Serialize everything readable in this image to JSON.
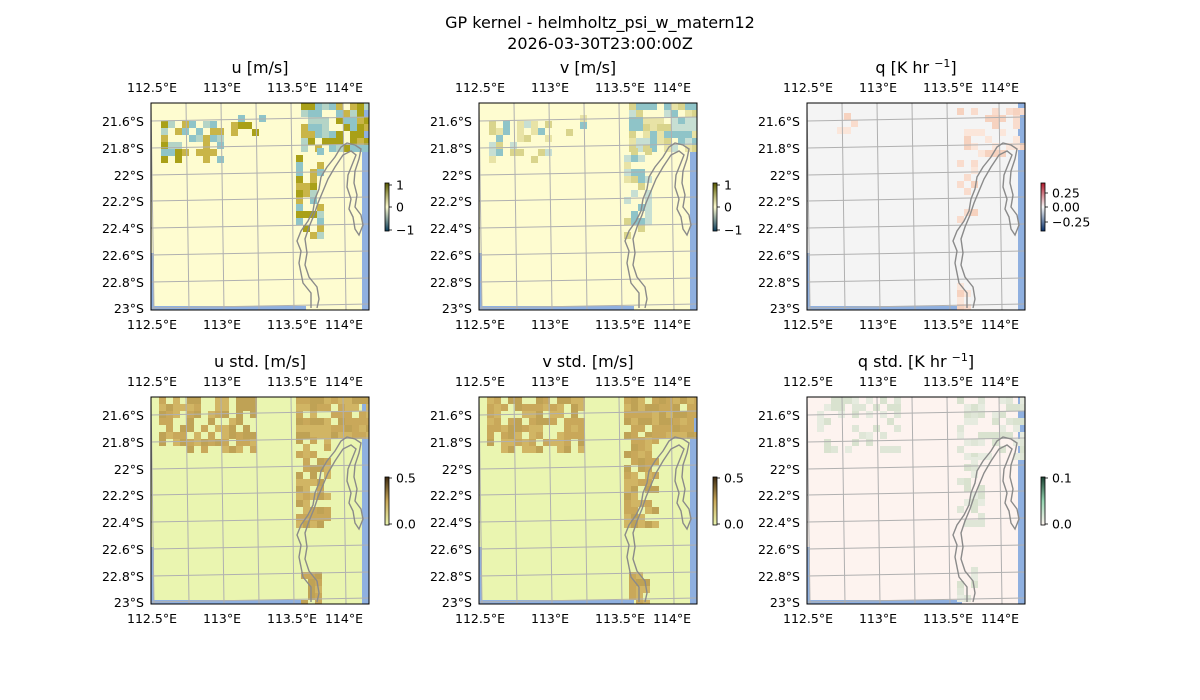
{
  "figure": {
    "title_line1": "GP kernel - helmholtz_psi_w_matern12",
    "title_line2": "2026-03-30T23:00:00Z"
  },
  "colors": {
    "ocean": "#8fb0e0",
    "grid": "#b0b0b0",
    "coast": "#8a8a8a",
    "frame": "#000000"
  },
  "chart_data": [
    {
      "type": "heatmap",
      "id": "u",
      "title": "u [m/s]",
      "xticks": [
        "112.5°E",
        "113°E",
        "113.5°E",
        "114°E"
      ],
      "yticks": [
        "21.6°S",
        "21.8°S",
        "22°S",
        "22.2°S",
        "22.4°S",
        "22.6°S",
        "22.8°S",
        "23°S"
      ],
      "colorbar": {
        "ticks": [
          "1",
          "0",
          "−1"
        ],
        "range": [
          -1,
          1
        ]
      },
      "background_color": "#fefcd0",
      "patch_colors": [
        "#8fc4c8",
        "#b4d4c6",
        "#c9b548",
        "#a9a018"
      ]
    },
    {
      "type": "heatmap",
      "id": "v",
      "title": "v [m/s]",
      "xticks": [
        "112.5°E",
        "113°E",
        "113.5°E",
        "114°E"
      ],
      "yticks": [
        "21.6°S",
        "21.8°S",
        "22°S",
        "22.2°S",
        "22.4°S",
        "22.6°S",
        "22.8°S",
        "23°S"
      ],
      "colorbar": {
        "ticks": [
          "1",
          "0",
          "−1"
        ],
        "range": [
          -1,
          1
        ]
      },
      "background_color": "#fefcd0",
      "patch_colors": [
        "#8fc4c8",
        "#c7dfd3",
        "#e8e3a6",
        "#d9d48c"
      ]
    },
    {
      "type": "heatmap",
      "id": "q",
      "title_main": "q [K hr ",
      "title_sup": "−1",
      "title_end": "]",
      "xticks": [
        "112.5°E",
        "113°E",
        "113.5°E",
        "114°E"
      ],
      "yticks": [
        "21.6°S",
        "21.8°S",
        "22°S",
        "22.2°S",
        "22.4°S",
        "22.6°S",
        "22.8°S",
        "23°S"
      ],
      "colorbar": {
        "ticks": [
          "0.25",
          "0.00",
          "−0.25"
        ],
        "range": [
          -0.25,
          0.25
        ]
      },
      "background_color": "#f4f4f4",
      "patch_colors": [
        "#f9dccd",
        "#fbe6da",
        "#f6d2bf"
      ]
    },
    {
      "type": "heatmap",
      "id": "u_std",
      "title": "u std. [m/s]",
      "xticks": [
        "112.5°E",
        "113°E",
        "113.5°E",
        "114°E"
      ],
      "yticks": [
        "21.6°S",
        "21.8°S",
        "22°S",
        "22.2°S",
        "22.4°S",
        "22.6°S",
        "22.8°S",
        "23°S"
      ],
      "colorbar": {
        "ticks": [
          "0.5",
          "0.0"
        ],
        "range": [
          0,
          0.5
        ]
      },
      "background_color": "#eaf5b0",
      "patch_colors": [
        "#c9a85a",
        "#d1b564",
        "#bfa255"
      ]
    },
    {
      "type": "heatmap",
      "id": "v_std",
      "title": "v std. [m/s]",
      "xticks": [
        "112.5°E",
        "113°E",
        "113.5°E",
        "114°E"
      ],
      "yticks": [
        "21.6°S",
        "21.8°S",
        "22°S",
        "22.2°S",
        "22.4°S",
        "22.6°S",
        "22.8°S",
        "23°S"
      ],
      "colorbar": {
        "ticks": [
          "0.5",
          "0.0"
        ],
        "range": [
          0,
          0.5
        ]
      },
      "background_color": "#eaf5b0",
      "patch_colors": [
        "#c9a85a",
        "#d1b564",
        "#bfa255"
      ]
    },
    {
      "type": "heatmap",
      "id": "q_std",
      "title_main": "q std. [K hr ",
      "title_sup": "−1",
      "title_end": "]",
      "xticks": [
        "112.5°E",
        "113°E",
        "113.5°E",
        "114°E"
      ],
      "yticks": [
        "21.6°S",
        "21.8°S",
        "22°S",
        "22.2°S",
        "22.4°S",
        "22.6°S",
        "22.8°S",
        "23°S"
      ],
      "colorbar": {
        "ticks": [
          "0.1",
          "0.0"
        ],
        "range": [
          0,
          0.1
        ]
      },
      "background_color": "#fdf3ef",
      "patch_colors": [
        "#dfe6d7",
        "#e6ebdf",
        "#d9e2cf"
      ]
    }
  ]
}
